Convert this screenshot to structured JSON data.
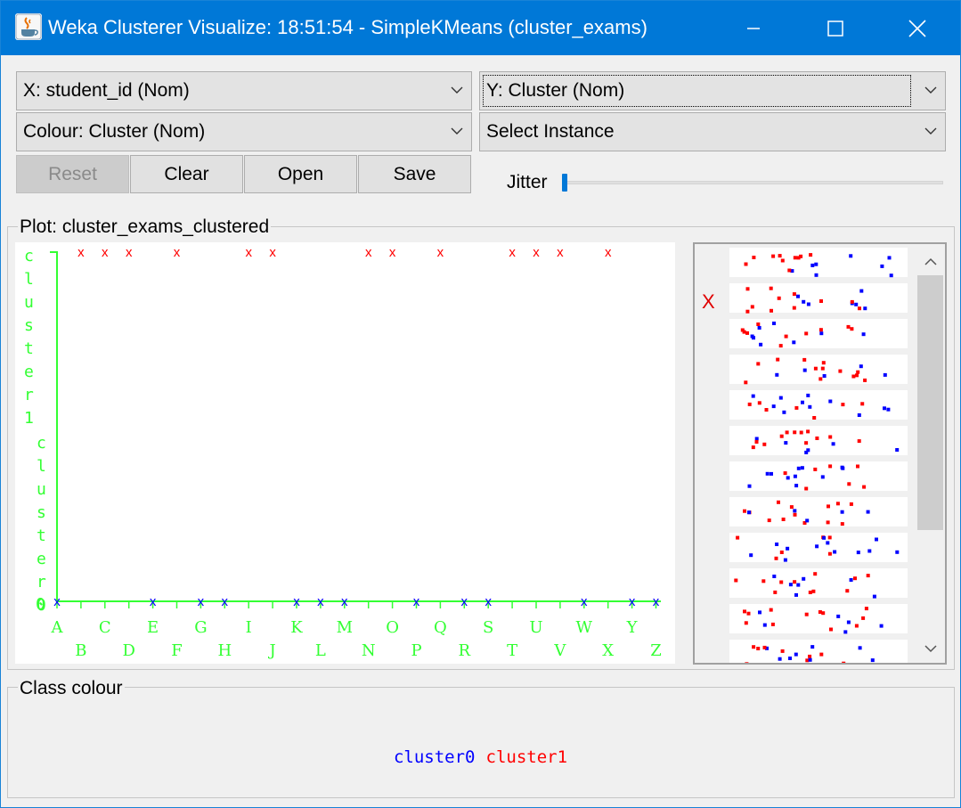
{
  "window": {
    "title": "Weka Clusterer Visualize: 18:51:54 - SimpleKMeans (cluster_exams)",
    "minimize": "—",
    "maximize": "☐",
    "close": "✕"
  },
  "controls": {
    "x_axis": "X: student_id (Nom)",
    "y_axis": "Y: Cluster (Nom)",
    "colour": "Colour: Cluster (Nom)",
    "select_instance": "Select Instance",
    "reset": "Reset",
    "clear": "Clear",
    "open": "Open",
    "save": "Save",
    "jitter_label": "Jitter",
    "jitter_value": 0
  },
  "plot": {
    "group_title": "Plot: cluster_exams_clustered",
    "marker": "x",
    "y_label_top": "cluster1",
    "y_label_bottom": "cluster0",
    "y_tick_bottom": "0",
    "x_row1": [
      "A",
      "C",
      "E",
      "G",
      "I",
      "K",
      "M",
      "O",
      "Q",
      "S",
      "U",
      "W",
      "Y"
    ],
    "x_row2": [
      "B",
      "D",
      "F",
      "H",
      "J",
      "L",
      "N",
      "P",
      "R",
      "T",
      "V",
      "X",
      "Z"
    ],
    "colors": {
      "axis": "#33ff33",
      "cluster0": "#0000ff",
      "cluster1": "#ff0000"
    }
  },
  "chart_data": {
    "type": "scatter",
    "xlabel": "student_id",
    "ylabel": "Cluster",
    "x_categories": [
      "A",
      "B",
      "C",
      "D",
      "E",
      "F",
      "G",
      "H",
      "I",
      "J",
      "K",
      "L",
      "M",
      "N",
      "O",
      "P",
      "Q",
      "R",
      "S",
      "T",
      "U",
      "V",
      "W",
      "X",
      "Y",
      "Z"
    ],
    "y_categories": [
      "cluster0",
      "cluster1"
    ],
    "series": [
      {
        "name": "cluster1",
        "color": "#ff0000",
        "x": [
          "B",
          "C",
          "D",
          "F",
          "I",
          "J",
          "N",
          "O",
          "Q",
          "T",
          "U",
          "V",
          "X"
        ]
      },
      {
        "name": "cluster0",
        "color": "#0000ff",
        "x": [
          "A",
          "E",
          "G",
          "H",
          "K",
          "L",
          "M",
          "P",
          "R",
          "S",
          "W",
          "Y",
          "Z"
        ]
      }
    ]
  },
  "attribute_panel": {
    "selected_marker": "X"
  },
  "class_colour": {
    "group_title": "Class colour",
    "legend": [
      {
        "label": "cluster0",
        "color": "#0000ff"
      },
      {
        "label": "cluster1",
        "color": "#ff0000"
      }
    ]
  }
}
